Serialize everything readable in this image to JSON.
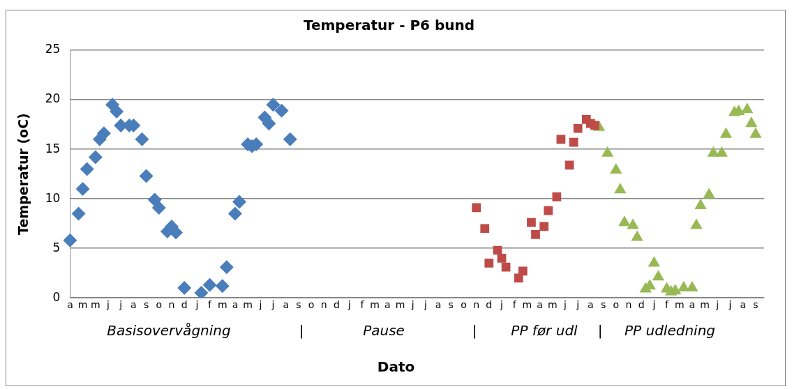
{
  "chart_data": {
    "type": "scatter",
    "title": "Temperatur - P6 bund",
    "xlabel": "Dato",
    "ylabel": "Temperatur (oC)",
    "annotations": [
      "Basisovervågning",
      "|",
      "Pause",
      "|",
      "PP før udl",
      "|",
      "PP udledning"
    ],
    "categories": [
      "a",
      null,
      null,
      "m",
      null,
      null,
      "m",
      null,
      null,
      "j",
      null,
      null,
      "j",
      null,
      null,
      "a",
      null,
      null,
      "s",
      null,
      null,
      "o",
      null,
      null,
      "n",
      null,
      null,
      "d",
      null,
      null,
      "j",
      null,
      null,
      "f",
      null,
      null,
      "m",
      null,
      null,
      "a",
      null,
      null,
      "m",
      null,
      null,
      "j",
      null,
      null,
      "j",
      null,
      null,
      "a",
      null,
      null,
      "s",
      null,
      null,
      "o",
      null,
      null,
      "n",
      null,
      null,
      "d",
      null,
      null,
      "j",
      null,
      null,
      "f",
      null,
      null,
      "m",
      null,
      null,
      "a",
      null,
      null,
      "m",
      null,
      null,
      "j",
      null,
      null,
      "j",
      null,
      null,
      "a",
      null,
      null,
      "s",
      null,
      null,
      "o",
      null,
      null,
      "n",
      null,
      null,
      "d",
      null,
      null,
      "j",
      null,
      null,
      "f",
      null,
      null,
      "m",
      null,
      null,
      "a",
      null,
      null,
      "m",
      null,
      null,
      "j",
      null,
      null,
      "j",
      null,
      null,
      "a",
      null,
      null,
      "s",
      null,
      null,
      "o",
      null,
      null,
      "n",
      null,
      null,
      "d",
      null,
      null,
      "j",
      null,
      null,
      "f",
      null,
      null,
      "m",
      null,
      null,
      "a",
      null,
      null,
      "m",
      null,
      null,
      "j",
      null,
      null,
      "j",
      null,
      null,
      "a",
      null,
      null,
      "s",
      null,
      null
    ],
    "ylim": [
      0,
      25
    ],
    "yticks": [
      0,
      5,
      10,
      15,
      20,
      25
    ],
    "grid": "y",
    "series": [
      {
        "color": "#4a7ebb",
        "marker": "diamond",
        "values": [
          5.8,
          null,
          8.5,
          11.0,
          13.0,
          null,
          14.2,
          16.0,
          16.6,
          null,
          19.5,
          18.8,
          17.4,
          null,
          17.4,
          17.4,
          null,
          16.0,
          12.3,
          null,
          9.9,
          9.1,
          null,
          6.7,
          7.2,
          6.6,
          null,
          1.0,
          null,
          null,
          null,
          0.5,
          null,
          1.3,
          null,
          null,
          1.2,
          3.1,
          null,
          8.5,
          9.7,
          null,
          15.5,
          15.3,
          15.5,
          null,
          18.2,
          17.6,
          19.5,
          null,
          18.9,
          null,
          16.0,
          null,
          null,
          null,
          null,
          null,
          null,
          null,
          null,
          null,
          null,
          null,
          null,
          null,
          null,
          null,
          null,
          null,
          null,
          null,
          null,
          null,
          null,
          null,
          null,
          null,
          null,
          null,
          null,
          null,
          null,
          null,
          null,
          null,
          null,
          null,
          null,
          null,
          null,
          null,
          null,
          null,
          null,
          null,
          null,
          null,
          null,
          null,
          null,
          null,
          null,
          null,
          null,
          null,
          null,
          null,
          null,
          null,
          null,
          null,
          null,
          null,
          null,
          null,
          null,
          null,
          null,
          null,
          null,
          null,
          null,
          null,
          null,
          null,
          null,
          null,
          null,
          null,
          null,
          null,
          null,
          null,
          null,
          null,
          null,
          null,
          null,
          null,
          null,
          null,
          null,
          null,
          null,
          null,
          null,
          null,
          null,
          null,
          null,
          null,
          null,
          null,
          null,
          null,
          null,
          null,
          null,
          null,
          null,
          null,
          null,
          null,
          null
        ]
      },
      {
        "color": "#be4b48",
        "marker": "square",
        "values": [
          null,
          null,
          null,
          null,
          null,
          null,
          null,
          null,
          null,
          null,
          null,
          null,
          null,
          null,
          null,
          null,
          null,
          null,
          null,
          null,
          null,
          null,
          null,
          null,
          null,
          null,
          null,
          null,
          null,
          null,
          null,
          null,
          null,
          null,
          null,
          null,
          null,
          null,
          null,
          null,
          null,
          null,
          null,
          null,
          null,
          null,
          null,
          null,
          null,
          null,
          null,
          null,
          null,
          null,
          null,
          null,
          null,
          null,
          null,
          null,
          null,
          null,
          null,
          null,
          null,
          null,
          null,
          null,
          null,
          null,
          null,
          null,
          null,
          null,
          null,
          null,
          null,
          null,
          null,
          null,
          null,
          null,
          null,
          null,
          null,
          null,
          null,
          null,
          null,
          null,
          null,
          null,
          null,
          null,
          null,
          null,
          9.1,
          null,
          7.0,
          3.5,
          null,
          4.8,
          4.0,
          3.1,
          null,
          null,
          2.0,
          2.7,
          null,
          7.6,
          6.4,
          null,
          7.2,
          8.8,
          null,
          10.2,
          16.0,
          null,
          13.4,
          15.7,
          17.1,
          null,
          18.0,
          17.6,
          17.4,
          null,
          null,
          null,
          null,
          null,
          null,
          null,
          null,
          null,
          null,
          null,
          null,
          null,
          null,
          null,
          null,
          null,
          null,
          null,
          null,
          null,
          null,
          null,
          null,
          null,
          null,
          null,
          null,
          null,
          null,
          null,
          null,
          null,
          null,
          null,
          null,
          null,
          null,
          null,
          null
        ]
      },
      {
        "color": "#98b954",
        "marker": "triangle",
        "values": [
          null,
          null,
          null,
          null,
          null,
          null,
          null,
          null,
          null,
          null,
          null,
          null,
          null,
          null,
          null,
          null,
          null,
          null,
          null,
          null,
          null,
          null,
          null,
          null,
          null,
          null,
          null,
          null,
          null,
          null,
          null,
          null,
          null,
          null,
          null,
          null,
          null,
          null,
          null,
          null,
          null,
          null,
          null,
          null,
          null,
          null,
          null,
          null,
          null,
          null,
          null,
          null,
          null,
          null,
          null,
          null,
          null,
          null,
          null,
          null,
          null,
          null,
          null,
          null,
          null,
          null,
          null,
          null,
          null,
          null,
          null,
          null,
          null,
          null,
          null,
          null,
          null,
          null,
          null,
          null,
          null,
          null,
          null,
          null,
          null,
          null,
          null,
          null,
          null,
          null,
          null,
          null,
          null,
          null,
          null,
          null,
          null,
          null,
          null,
          null,
          null,
          null,
          null,
          null,
          null,
          null,
          null,
          null,
          null,
          null,
          null,
          null,
          null,
          null,
          null,
          null,
          null,
          null,
          null,
          null,
          null,
          null,
          null,
          null,
          null,
          17.2,
          null,
          14.6,
          null,
          12.9,
          10.9,
          7.6,
          null,
          7.3,
          6.1,
          null,
          0.9,
          1.2,
          3.5,
          2.1,
          null,
          0.9,
          0.6,
          0.7,
          null,
          1.0,
          null,
          1.0,
          7.3,
          9.3,
          null,
          10.4,
          14.6,
          null,
          14.6,
          16.5,
          null,
          18.7,
          18.8,
          null,
          19.0,
          17.6,
          16.5,
          null,
          null
        ]
      }
    ]
  }
}
